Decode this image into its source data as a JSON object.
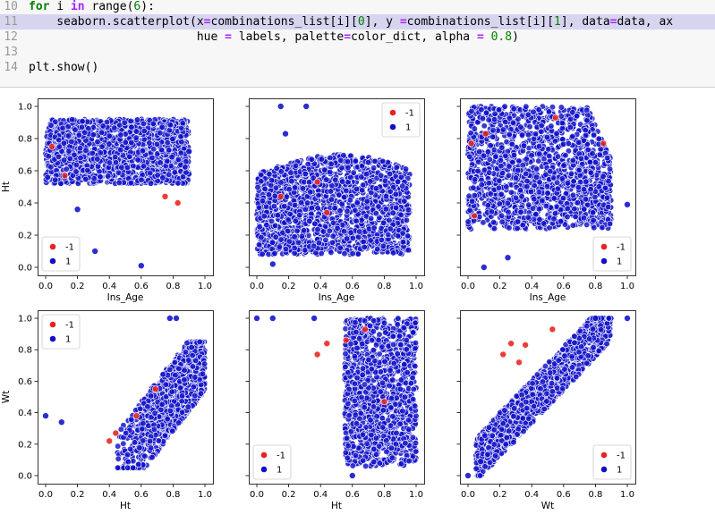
{
  "code_cell": {
    "lines": [
      {
        "n": "10",
        "html": "<span class=\"kw\">for</span> i <span class=\"op\">in</span> range(<span class=\"num\">6</span>):"
      },
      {
        "n": "11",
        "html": "    seaborn.scatterplot(x<span class=\"op\">=</span>combinations_list[i][<span class=\"num\">0</span>], y <span class=\"op\">=</span>combinations_list[i][<span class=\"num\">1</span>], data<span class=\"op\">=</span>data, ax",
        "highlight": true
      },
      {
        "n": "12",
        "html": "                        hue <span class=\"op\">=</span> labels, palette<span class=\"op\">=</span>color_dict, alpha <span class=\"op\">=</span> <span class=\"num\">0.8</span>)"
      },
      {
        "n": "13",
        "html": ""
      },
      {
        "n": "14",
        "html": "plt.show()"
      }
    ]
  },
  "colors": {
    "inlier": "#1010c8",
    "outlier": "#e8221e",
    "marker_edge": "#ffffff"
  },
  "legend_entries": [
    "-1",
    "1"
  ],
  "chart_data": [
    {
      "type": "scatter",
      "xlabel": "Ins_Age",
      "ylabel": "Ht",
      "xlim": [
        0.0,
        1.0
      ],
      "ylim": [
        0.0,
        1.0
      ],
      "xticks": [
        "0.0",
        "0.2",
        "0.4",
        "0.6",
        "0.8",
        "1.0"
      ],
      "yticks": [
        "0.0",
        "0.2",
        "0.4",
        "0.6",
        "0.8",
        "1.0"
      ],
      "legend_loc": "lower-left",
      "series": [
        {
          "name": "-1",
          "points": [
            [
              0.04,
              0.75
            ],
            [
              0.12,
              0.57
            ],
            [
              0.75,
              0.44
            ],
            [
              0.83,
              0.4
            ]
          ]
        },
        {
          "name": "1",
          "dense_band": "rows 0.55-0.90 across ages 0.0-0.9",
          "points": [
            [
              0.31,
              0.1
            ],
            [
              0.6,
              0.01
            ],
            [
              0.2,
              0.36
            ],
            [
              0.9,
              0.72
            ]
          ]
        }
      ]
    },
    {
      "type": "scatter",
      "xlabel": "Ins_Age",
      "ylabel": "",
      "xlim": [
        0.0,
        1.0
      ],
      "ylim": [
        0.0,
        1.0
      ],
      "xticks": [
        "0.0",
        "0.2",
        "0.4",
        "0.6",
        "0.8",
        "1.0"
      ],
      "yticks": [],
      "legend_loc": "upper-right",
      "series": [
        {
          "name": "-1",
          "points": [
            [
              0.15,
              0.44
            ],
            [
              0.38,
              0.53
            ],
            [
              0.44,
              0.34
            ]
          ]
        },
        {
          "name": "1",
          "dense_band": "heights 0.1-0.7 across ages 0.0-0.95",
          "points": [
            [
              0.15,
              1.0
            ],
            [
              0.31,
              1.0
            ],
            [
              0.18,
              0.83
            ],
            [
              0.1,
              0.02
            ]
          ]
        }
      ]
    },
    {
      "type": "scatter",
      "xlabel": "Ins_Age",
      "ylabel": "",
      "xlim": [
        0.0,
        1.0
      ],
      "ylim": [
        0.0,
        1.0
      ],
      "xticks": [
        "0.0",
        "0.2",
        "0.4",
        "0.6",
        "0.8",
        "1.0"
      ],
      "yticks": [],
      "legend_loc": "lower-right",
      "series": [
        {
          "name": "-1",
          "points": [
            [
              0.02,
              0.77
            ],
            [
              0.11,
              0.83
            ],
            [
              0.55,
              0.93
            ],
            [
              0.85,
              0.77
            ],
            [
              0.04,
              0.32
            ]
          ]
        },
        {
          "name": "1",
          "dense_band": "values 0.25-1.0 across ages 0.0-0.9",
          "points": [
            [
              0.1,
              0.0
            ],
            [
              0.25,
              0.06
            ],
            [
              1.0,
              0.39
            ]
          ]
        }
      ]
    },
    {
      "type": "scatter",
      "xlabel": "Ht",
      "ylabel": "Wt",
      "xlim": [
        0.0,
        1.0
      ],
      "ylim": [
        0.0,
        1.0
      ],
      "xticks": [
        "0.0",
        "0.2",
        "0.4",
        "0.6",
        "0.8",
        "1.0"
      ],
      "yticks": [
        "0.0",
        "0.2",
        "0.4",
        "0.6",
        "0.8",
        "1.0"
      ],
      "legend_loc": "upper-left",
      "series": [
        {
          "name": "-1",
          "points": [
            [
              0.44,
              0.27
            ],
            [
              0.57,
              0.38
            ],
            [
              0.4,
              0.22
            ],
            [
              0.69,
              0.55
            ]
          ]
        },
        {
          "name": "1",
          "dense_band": "heights 0.4-1.0, weights 0.05-0.85",
          "points": [
            [
              0.0,
              0.38
            ],
            [
              0.1,
              0.34
            ],
            [
              0.78,
              1.0
            ],
            [
              0.82,
              1.0
            ]
          ]
        }
      ]
    },
    {
      "type": "scatter",
      "xlabel": "Ht",
      "ylabel": "",
      "xlim": [
        0.0,
        1.0
      ],
      "ylim": [
        0.0,
        1.0
      ],
      "xticks": [
        "0.0",
        "0.2",
        "0.4",
        "0.6",
        "0.8",
        "1.0"
      ],
      "yticks": [],
      "legend_loc": "lower-left",
      "series": [
        {
          "name": "-1",
          "points": [
            [
              0.38,
              0.77
            ],
            [
              0.44,
              0.84
            ],
            [
              0.56,
              0.86
            ],
            [
              0.68,
              0.93
            ],
            [
              0.8,
              0.47
            ]
          ]
        },
        {
          "name": "1",
          "dense_band": "heights 0.55-1.0, weights 0.05-1.0",
          "points": [
            [
              0.0,
              1.0
            ],
            [
              0.1,
              1.0
            ],
            [
              0.36,
              1.0
            ],
            [
              0.6,
              0.0
            ]
          ]
        }
      ]
    },
    {
      "type": "scatter",
      "xlabel": "Wt",
      "ylabel": "",
      "xlim": [
        0.0,
        1.0
      ],
      "ylim": [
        0.0,
        1.0
      ],
      "xticks": [
        "0.0",
        "0.2",
        "0.4",
        "0.6",
        "0.8",
        "1.0"
      ],
      "yticks": [],
      "legend_loc": "lower-right",
      "series": [
        {
          "name": "-1",
          "points": [
            [
              0.22,
              0.77
            ],
            [
              0.27,
              0.84
            ],
            [
              0.32,
              0.72
            ],
            [
              0.53,
              0.93
            ],
            [
              0.36,
              0.83
            ]
          ]
        },
        {
          "name": "1",
          "dense_band": "diagonal band from (0.05,0.1) to (0.85,1.0)",
          "points": [
            [
              0.0,
              0.0
            ],
            [
              0.08,
              0.09
            ],
            [
              1.0,
              1.0
            ],
            [
              0.8,
              1.0
            ]
          ]
        }
      ]
    }
  ]
}
